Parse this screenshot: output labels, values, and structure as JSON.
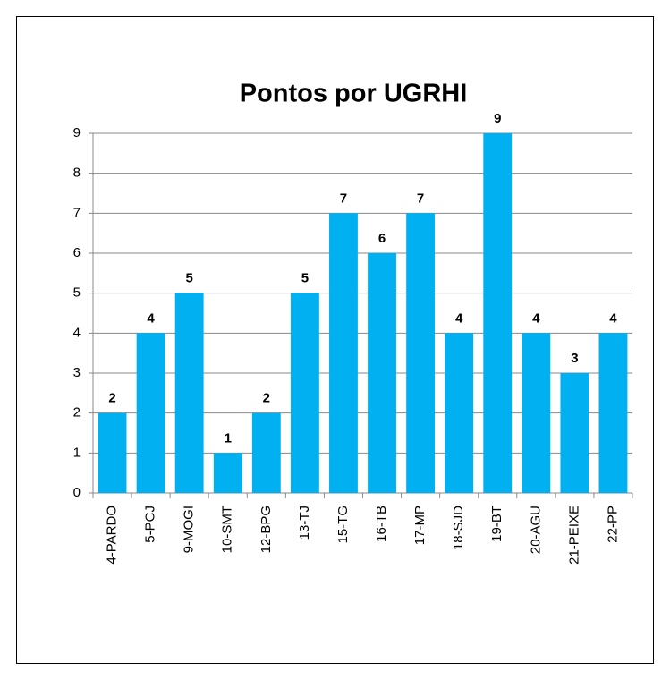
{
  "chart_data": {
    "type": "bar",
    "title": "Pontos por UGRHI",
    "categories": [
      "4-PARDO",
      "5-PCJ",
      "9-MOGI",
      "10-SMT",
      "12-BPG",
      "13-TJ",
      "15-TG",
      "16-TB",
      "17-MP",
      "18-SJD",
      "19-BT",
      "20-AGU",
      "21-PEIXE",
      "22-PP"
    ],
    "values": [
      2,
      4,
      5,
      1,
      2,
      5,
      7,
      6,
      7,
      4,
      9,
      4,
      3,
      4
    ],
    "color": "#00b0f0",
    "ylim": [
      0,
      9
    ],
    "yticks": [
      0,
      1,
      2,
      3,
      4,
      5,
      6,
      7,
      8,
      9
    ],
    "grid": true
  }
}
